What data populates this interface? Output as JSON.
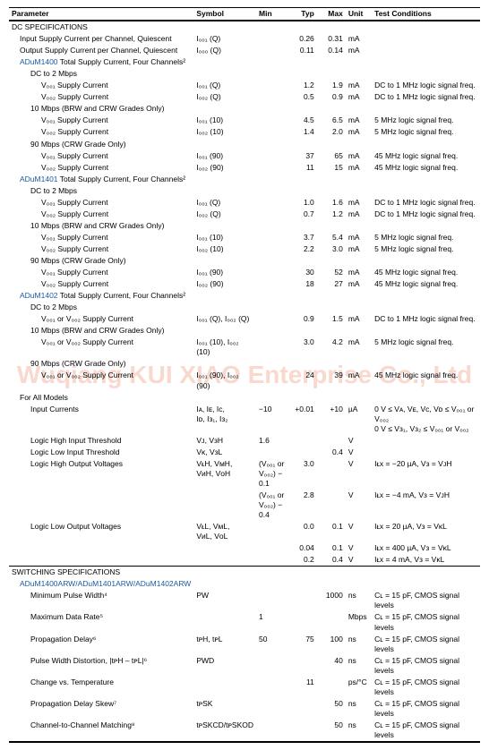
{
  "watermark": "Wuqiang KUI XIAO Enterprise Co., Ltd",
  "columns": {
    "param": "Parameter",
    "symbol": "Symbol",
    "min": "Min",
    "typ": "Typ",
    "max": "Max",
    "unit": "Unit",
    "test": "Test Conditions"
  },
  "sections": [
    {
      "title": "DC SPECIFICATIONS",
      "rows": [
        {
          "ind": 1,
          "p": "Input Supply Current per Channel, Quiescent",
          "sym": "I₀₀₁ (Q)",
          "typ": "0.26",
          "max": "0.31",
          "u": "mA"
        },
        {
          "ind": 1,
          "p": "Output Supply Current per Channel, Quiescent",
          "sym": "I₀₀₀ (Q)",
          "typ": "0.11",
          "max": "0.14",
          "u": "mA"
        },
        {
          "ind": 1,
          "link": true,
          "p": "ADuM1400",
          "pSuffix": " Total Supply Current, Four Channels²"
        },
        {
          "ind": 2,
          "p": "DC to 2 Mbps"
        },
        {
          "ind": 3,
          "p": "V₀₀₁ Supply Current",
          "sym": "I₀₀₁ (Q)",
          "typ": "1.2",
          "max": "1.9",
          "u": "mA",
          "t": "DC to 1 MHz logic signal freq."
        },
        {
          "ind": 3,
          "p": "V₀₀₂ Supply Current",
          "sym": "I₀₀₂ (Q)",
          "typ": "0.5",
          "max": "0.9",
          "u": "mA",
          "t": "DC to 1 MHz logic signal freq."
        },
        {
          "ind": 2,
          "p": "10 Mbps (BRW and CRW Grades Only)"
        },
        {
          "ind": 3,
          "p": "V₀₀₁ Supply Current",
          "sym": "I₀₀₁ (10)",
          "typ": "4.5",
          "max": "6.5",
          "u": "mA",
          "t": "5 MHz logic signal freq."
        },
        {
          "ind": 3,
          "p": "V₀₀₂ Supply Current",
          "sym": "I₀₀₂ (10)",
          "typ": "1.4",
          "max": "2.0",
          "u": "mA",
          "t": "5 MHz logic signal freq."
        },
        {
          "ind": 2,
          "p": "90 Mbps (CRW Grade Only)"
        },
        {
          "ind": 3,
          "p": "V₀₀₁ Supply Current",
          "sym": "I₀₀₁ (90)",
          "typ": "37",
          "max": "65",
          "u": "mA",
          "t": "45 MHz logic signal freq."
        },
        {
          "ind": 3,
          "p": "V₀₀₂ Supply Current",
          "sym": "I₀₀₂ (90)",
          "typ": "11",
          "max": "15",
          "u": "mA",
          "t": "45 MHz logic signal freq."
        },
        {
          "ind": 1,
          "link": true,
          "p": "ADuM1401",
          "pSuffix": " Total Supply Current, Four Channels²"
        },
        {
          "ind": 2,
          "p": "DC to 2 Mbps"
        },
        {
          "ind": 3,
          "p": "V₀₀₁ Supply Current",
          "sym": "I₀₀₁ (Q)",
          "typ": "1.0",
          "max": "1.6",
          "u": "mA",
          "t": "DC to 1 MHz logic signal freq."
        },
        {
          "ind": 3,
          "p": "V₀₀₂ Supply Current",
          "sym": "I₀₀₂ (Q)",
          "typ": "0.7",
          "max": "1.2",
          "u": "mA",
          "t": "DC to 1 MHz logic signal freq."
        },
        {
          "ind": 2,
          "p": "10 Mbps (BRW and CRW Grades Only)"
        },
        {
          "ind": 3,
          "p": "V₀₀₁ Supply Current",
          "sym": "I₀₀₁ (10)",
          "typ": "3.7",
          "max": "5.4",
          "u": "mA",
          "t": "5 MHz logic signal freq."
        },
        {
          "ind": 3,
          "p": "V₀₀₂ Supply Current",
          "sym": "I₀₀₂ (10)",
          "typ": "2.2",
          "max": "3.0",
          "u": "mA",
          "t": "5 MHz logic signal freq."
        },
        {
          "ind": 2,
          "p": "90 Mbps (CRW Grade Only)"
        },
        {
          "ind": 3,
          "p": "V₀₀₁ Supply Current",
          "sym": "I₀₀₁ (90)",
          "typ": "30",
          "max": "52",
          "u": "mA",
          "t": "45 MHz logic signal freq."
        },
        {
          "ind": 3,
          "p": "V₀₀₂ Supply Current",
          "sym": "I₀₀₂ (90)",
          "typ": "18",
          "max": "27",
          "u": "mA",
          "t": "45 MHz logic signal freq."
        },
        {
          "ind": 1,
          "link": true,
          "p": "ADuM1402",
          "pSuffix": " Total Supply Current, Four Channels²"
        },
        {
          "ind": 2,
          "p": "DC to 2 Mbps"
        },
        {
          "ind": 3,
          "p": "V₀₀₁ or V₀₀₂ Supply Current",
          "sym": "I₀₀₁ (Q), I₀₀₂ (Q)",
          "typ": "0.9",
          "max": "1.5",
          "u": "mA",
          "t": "DC to 1 MHz logic signal freq."
        },
        {
          "ind": 2,
          "p": "10 Mbps (BRW and CRW Grades Only)"
        },
        {
          "ind": 3,
          "p": "V₀₀₁ or V₀₀₂ Supply Current",
          "sym": "I₀₀₁ (10), I₀₀₂ (10)",
          "typ": "3.0",
          "max": "4.2",
          "u": "mA",
          "t": "5 MHz logic signal freq."
        },
        {
          "ind": 2,
          "p": "90 Mbps (CRW Grade Only)"
        },
        {
          "ind": 3,
          "p": "V₀₀₁ or V₀₀₂ Supply Current",
          "sym": "I₀₀₁ (90), I₀₀₂ (90)",
          "typ": "24",
          "max": "39",
          "u": "mA",
          "t": "45 MHz logic signal freq."
        },
        {
          "ind": 1,
          "p": "For All Models"
        },
        {
          "ind": 2,
          "p": "Input Currents",
          "sym": "Iᴀ, Iᴇ, Iᴄ,\nIᴅ, Iᴈ₁, Iᴈ₂",
          "min": "−10",
          "typ": "+0.01",
          "max": "+10",
          "u": "µA",
          "t": "0 V ≤ Vᴀ, Vᴇ, Vᴄ, Vᴅ ≤ V₀₀₁ or V₀₀₂\n0 V ≤ Vᴈ₁, Vᴈ₂ ≤ V₀₀₁ or V₀₀₂"
        },
        {
          "ind": 2,
          "p": "Logic High Input Threshold",
          "sym": "Vᴊ, VᴈH",
          "min": "1.6",
          "u": "V"
        },
        {
          "ind": 2,
          "p": "Logic Low Input Threshold",
          "sym": "Vᴋ, VᴈL",
          "max": "0.4",
          "u": "V"
        },
        {
          "ind": 2,
          "p": "Logic High Output Voltages",
          "sym": "VᴌH, VᴍH,\nVᴎH, VᴏH",
          "min": "(V₀₀₁ or V₀₀₂) − 0.1",
          "typ": "3.0",
          "u": "V",
          "t": "Iᴌx = −20 µA, Vᴈ = VᴊH"
        },
        {
          "ind": 2,
          "sym": "",
          "min": "(V₀₀₁ or V₀₀₂) − 0.4",
          "typ": "2.8",
          "u": "V",
          "t": "Iᴌx = −4 mA, Vᴈ = VᴊH"
        },
        {
          "ind": 2,
          "p": "Logic Low Output Voltages",
          "sym": "VᴌL, VᴍL,\nVᴎL, VᴏL",
          "typ": "0.0",
          "max": "0.1",
          "u": "V",
          "t": "Iᴌx = 20 µA, Vᴈ = VᴋL"
        },
        {
          "ind": 2,
          "typ": "0.04",
          "max": "0.1",
          "u": "V",
          "t": "Iᴌx = 400 µA, Vᴈ = VᴋL"
        },
        {
          "ind": 2,
          "typ": "0.2",
          "max": "0.4",
          "u": "V",
          "t": "Iᴌx = 4 mA, Vᴈ = VᴋL",
          "foot": true
        }
      ]
    },
    {
      "title": "SWITCHING SPECIFICATIONS",
      "rows": [
        {
          "ind": 1,
          "link": true,
          "p": "ADuM1400ARW/ADuM1401ARW/ADuM1402ARW"
        },
        {
          "ind": 2,
          "p": "Minimum Pulse Width⁴",
          "sym": "PW",
          "max": "1000",
          "u": "ns",
          "t": "Cʟ = 15 pF, CMOS signal levels"
        },
        {
          "ind": 2,
          "p": "Maximum Data Rate⁵",
          "min": "1",
          "u": "Mbps",
          "t": "Cʟ = 15 pF, CMOS signal levels"
        },
        {
          "ind": 2,
          "p": "Propagation Delay⁶",
          "sym": "tᴘH, tᴘL",
          "min": "50",
          "typ": "75",
          "max": "100",
          "u": "ns",
          "t": "Cʟ = 15 pF, CMOS signal levels"
        },
        {
          "ind": 2,
          "p": "Pulse Width Distortion, |tᴘH – tᴘL|⁶",
          "sym": "PWD",
          "max": "40",
          "u": "ns",
          "t": "Cʟ = 15 pF, CMOS signal levels"
        },
        {
          "ind": 2,
          "p": "Change vs. Temperature",
          "typ": "11",
          "u": "ps/°C",
          "t": "Cʟ = 15 pF, CMOS signal levels"
        },
        {
          "ind": 2,
          "p": "Propagation Delay Skew⁷",
          "sym": "tᴘSK",
          "max": "50",
          "u": "ns",
          "t": "Cʟ = 15 pF, CMOS signal levels"
        },
        {
          "ind": 2,
          "p": "Channel-to-Channel Matching⁸",
          "sym": "tᴘSKCD/tᴘSKOD",
          "max": "50",
          "u": "ns",
          "t": "Cʟ = 15 pF, CMOS signal levels",
          "lastBorder": true
        }
      ]
    }
  ]
}
